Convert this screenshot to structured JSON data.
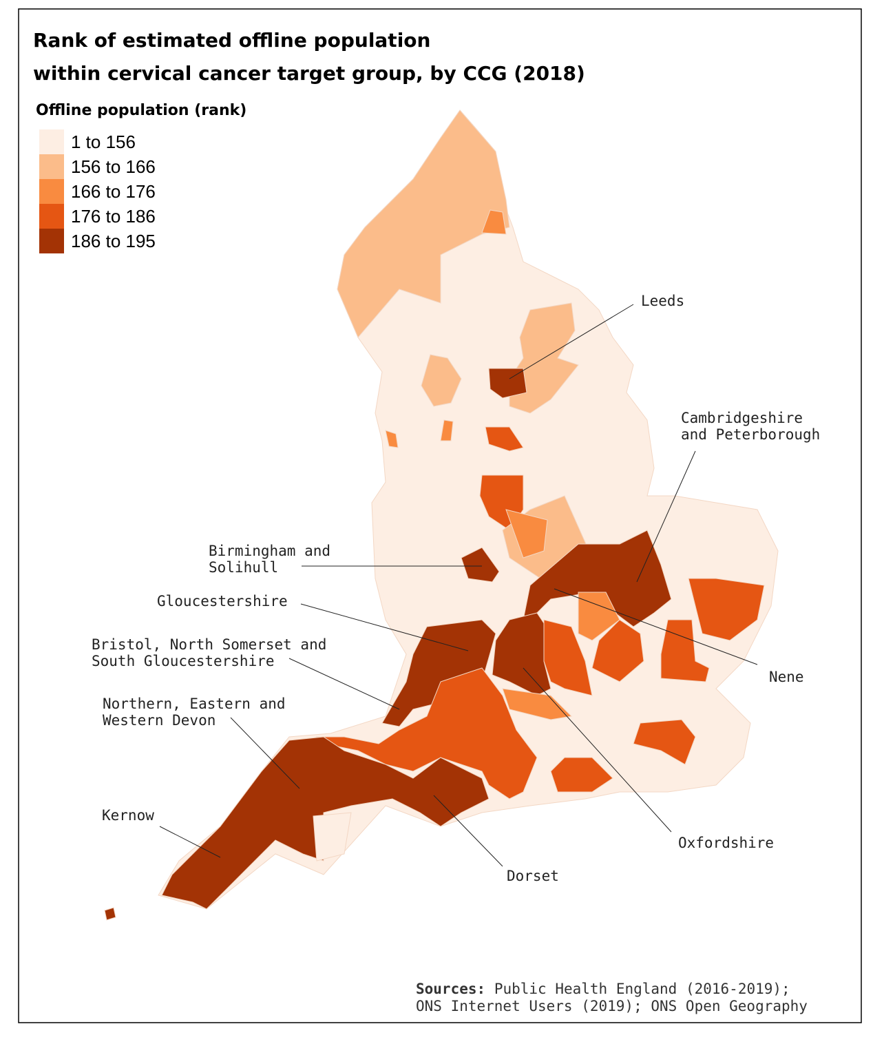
{
  "title": [
    "Rank of estimated offline population",
    "within cervical cancer target group, by CCG (2018)"
  ],
  "legend": {
    "title": "Offline population (rank)",
    "items": [
      {
        "label": "1 to 156",
        "color": "#fdeee3"
      },
      {
        "label": "156 to 166",
        "color": "#fbbc8a"
      },
      {
        "label": "166 to 176",
        "color": "#f98b40"
      },
      {
        "label": "176 to 186",
        "color": "#e55613"
      },
      {
        "label": "186 to 195",
        "color": "#a33305"
      }
    ]
  },
  "annotations": [
    {
      "lines": [
        "Leeds"
      ]
    },
    {
      "lines": [
        "Cambridgeshire",
        "and Peterborough"
      ]
    },
    {
      "lines": [
        "Birmingham and",
        "Solihull"
      ]
    },
    {
      "lines": [
        "Gloucestershire"
      ]
    },
    {
      "lines": [
        "Bristol, North Somerset and",
        "South Gloucestershire"
      ]
    },
    {
      "lines": [
        "Northern, Eastern and",
        "Western Devon"
      ]
    },
    {
      "lines": [
        "Kernow"
      ]
    },
    {
      "lines": [
        "Dorset"
      ]
    },
    {
      "lines": [
        "Oxfordshire"
      ]
    },
    {
      "lines": [
        "Nene"
      ]
    }
  ],
  "sources": {
    "heading": "Sources:",
    "lines": [
      "Public Health England (2016-2019);",
      "ONS Internet Users (2019); ONS Open Geography"
    ]
  }
}
